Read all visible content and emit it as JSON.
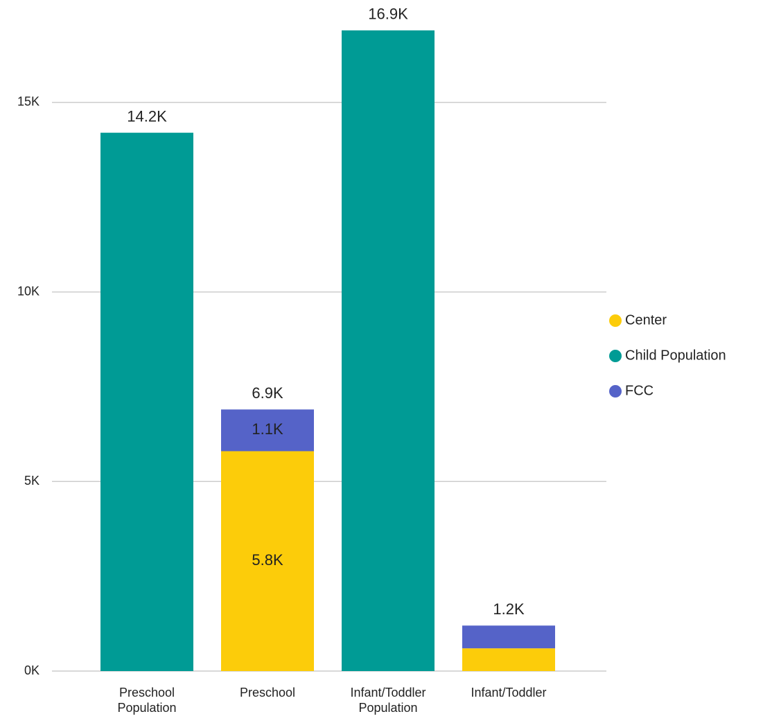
{
  "chart_data": {
    "type": "stacked-bar",
    "categories": [
      "Preschool Population",
      "Preschool",
      "Infant/Toddler Population",
      "Infant/Toddler"
    ],
    "series": [
      {
        "name": "Center",
        "color": "#fccc0a",
        "values": [
          null,
          5800,
          null,
          600
        ],
        "value_labels": [
          null,
          "5.8K",
          null,
          null
        ]
      },
      {
        "name": "Child Population",
        "color": "#009b95",
        "values": [
          14200,
          null,
          16900,
          null
        ],
        "value_labels": [
          null,
          null,
          null,
          null
        ]
      },
      {
        "name": "FCC",
        "color": "#5563c8",
        "values": [
          null,
          1100,
          null,
          600
        ],
        "value_labels": [
          null,
          "1.1K",
          null,
          null
        ]
      }
    ],
    "totals": [
      14200,
      6900,
      16900,
      1200
    ],
    "total_labels": [
      "14.2K",
      "6.9K",
      "16.9K",
      "1.2K"
    ],
    "ylim": [
      0,
      17500
    ],
    "yticks": [
      {
        "value": 0,
        "label": "0K"
      },
      {
        "value": 5000,
        "label": "5K"
      },
      {
        "value": 10000,
        "label": "10K"
      },
      {
        "value": 15000,
        "label": "15K"
      }
    ],
    "grid": true,
    "legend": "right"
  }
}
